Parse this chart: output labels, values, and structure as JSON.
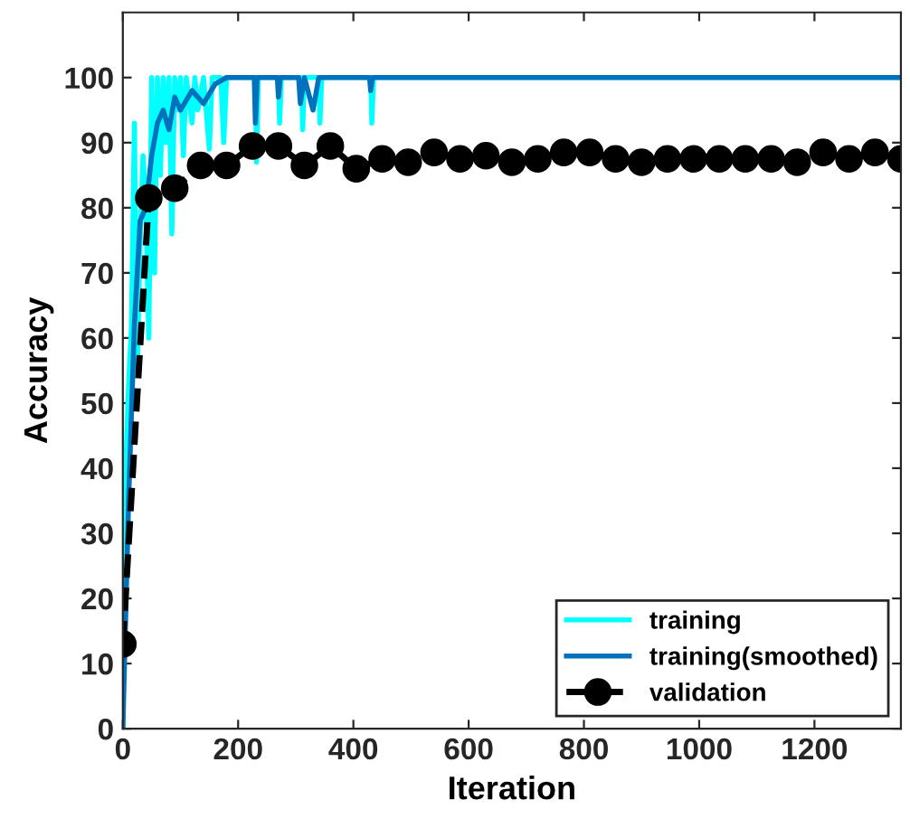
{
  "chart_data": {
    "type": "line",
    "xlabel": "Iteration",
    "ylabel": "Accuracy",
    "xlim": [
      0,
      1350
    ],
    "ylim": [
      0,
      110
    ],
    "xticks": [
      0,
      200,
      400,
      600,
      800,
      1000,
      1200
    ],
    "yticks": [
      0,
      10,
      20,
      30,
      40,
      50,
      60,
      70,
      80,
      90,
      100
    ],
    "grid": false,
    "legend": "bottom right",
    "series": [
      {
        "name": "training",
        "color": "#00ffff",
        "marker": "none",
        "line_style": "solid",
        "x": [
          0,
          5,
          10,
          15,
          20,
          25,
          30,
          35,
          40,
          45,
          50,
          55,
          60,
          65,
          70,
          75,
          80,
          85,
          90,
          95,
          100,
          105,
          110,
          120,
          125,
          130,
          140,
          150,
          155,
          170,
          175,
          180,
          230,
          232,
          235,
          270,
          272,
          275,
          310,
          312,
          315,
          340,
          342,
          345,
          430,
          432,
          435,
          1350
        ],
        "values": [
          0,
          40,
          53,
          62,
          93,
          55,
          75,
          88,
          80,
          60,
          100,
          70,
          100,
          85,
          100,
          90,
          100,
          76,
          100,
          95,
          100,
          88,
          100,
          93,
          100,
          95,
          100,
          89,
          100,
          100,
          90,
          100,
          100,
          87,
          100,
          100,
          93,
          100,
          100,
          92,
          100,
          100,
          93,
          100,
          100,
          93,
          100,
          100
        ]
      },
      {
        "name": "training(smoothed)",
        "color": "#0072bd",
        "marker": "none",
        "line_style": "solid",
        "x": [
          0,
          10,
          20,
          30,
          40,
          50,
          60,
          70,
          80,
          90,
          100,
          120,
          140,
          160,
          180,
          228,
          230,
          233,
          268,
          270,
          273,
          305,
          308,
          315,
          330,
          340,
          428,
          430,
          433,
          1350
        ],
        "values": [
          0,
          35,
          62,
          78,
          80,
          88,
          93,
          95,
          92,
          97,
          95,
          98,
          96,
          99,
          100,
          100,
          93,
          100,
          100,
          97,
          100,
          100,
          96,
          100,
          95,
          100,
          100,
          98,
          100,
          100
        ]
      },
      {
        "name": "validation",
        "color": "#000000",
        "marker": "circle",
        "line_style": "dashed",
        "x": [
          0,
          45,
          90,
          135,
          180,
          225,
          270,
          315,
          360,
          405,
          450,
          495,
          540,
          585,
          630,
          675,
          720,
          765,
          810,
          855,
          900,
          945,
          990,
          1035,
          1080,
          1125,
          1170,
          1215,
          1260,
          1305,
          1350
        ],
        "values": [
          13,
          81.5,
          83,
          86.5,
          86.5,
          89.5,
          89.5,
          86.5,
          89.5,
          86,
          87.5,
          87,
          88.5,
          87.5,
          88,
          87,
          87.5,
          88.5,
          88.5,
          87.5,
          87,
          87.5,
          87.5,
          87.5,
          87.5,
          87.5,
          87,
          88.5,
          87.5,
          88.5,
          87.5
        ]
      }
    ]
  }
}
